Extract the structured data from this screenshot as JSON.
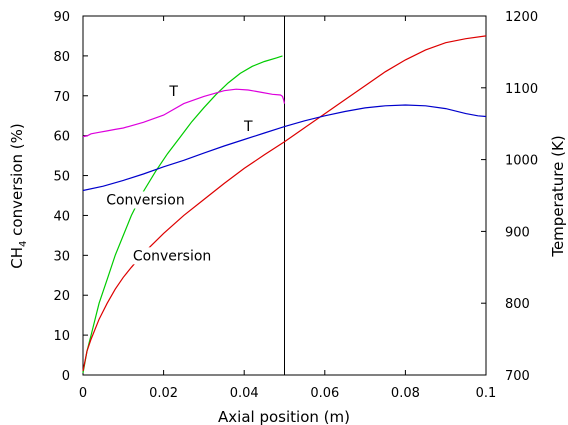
{
  "chart_data": {
    "type": "line",
    "xlabel": "Axial position (m)",
    "ylabel_left": {
      "base": "CH",
      "sub": "4",
      "rest": " conversion (%)"
    },
    "ylabel_right": "Temperature (K)",
    "xlim": [
      0,
      0.1
    ],
    "ylim_left": [
      0,
      90
    ],
    "ylim_right": [
      700,
      1200
    ],
    "xticks": [
      {
        "value": 0,
        "label": "0"
      },
      {
        "value": 0.02,
        "label": "0.02"
      },
      {
        "value": 0.04,
        "label": "0.04"
      },
      {
        "value": 0.06,
        "label": "0.06"
      },
      {
        "value": 0.08,
        "label": "0.08"
      },
      {
        "value": 0.1,
        "label": "0.1"
      }
    ],
    "yticks_left": [
      0,
      10,
      20,
      30,
      40,
      50,
      60,
      70,
      80,
      90
    ],
    "yticks_right": [
      700,
      800,
      900,
      1000,
      1100,
      1200
    ],
    "vline_x": 0.05,
    "series": [
      {
        "color": "#00cc00",
        "axis": "left",
        "x": [
          0,
          0.001,
          0.002,
          0.004,
          0.006,
          0.008,
          0.01,
          0.012,
          0.015,
          0.018,
          0.021,
          0.024,
          0.027,
          0.03,
          0.033,
          0.036,
          0.039,
          0.042,
          0.045,
          0.048,
          0.0495
        ],
        "y": [
          0.5,
          6,
          10,
          18,
          24,
          30,
          35,
          40,
          46,
          51,
          55.5,
          59.5,
          63.5,
          67,
          70.3,
          73.2,
          75.6,
          77.4,
          78.6,
          79.5,
          80
        ]
      },
      {
        "color": "#dd0000",
        "axis": "left",
        "x": [
          0,
          0.001,
          0.002,
          0.004,
          0.006,
          0.008,
          0.01,
          0.012,
          0.015,
          0.02,
          0.025,
          0.03,
          0.035,
          0.04,
          0.045,
          0.05,
          0.055,
          0.06,
          0.065,
          0.07,
          0.075,
          0.08,
          0.085,
          0.09,
          0.095,
          0.1
        ],
        "y": [
          1,
          6,
          9,
          14,
          18,
          21.5,
          24.5,
          27,
          30.5,
          35.5,
          40,
          44,
          48,
          51.8,
          55.2,
          58.5,
          62,
          65.5,
          69,
          72.5,
          76,
          79,
          81.5,
          83.3,
          84.3,
          85
        ]
      },
      {
        "color": "#dd00dd",
        "axis": "right",
        "x": [
          0,
          0.001,
          0.002,
          0.004,
          0.006,
          0.008,
          0.01,
          0.015,
          0.02,
          0.025,
          0.03,
          0.035,
          0.038,
          0.041,
          0.044,
          0.047,
          0.049,
          0.0495,
          0.0498,
          0.05
        ],
        "y": [
          1032,
          1033,
          1036,
          1038,
          1040,
          1042,
          1044,
          1052,
          1062,
          1078,
          1088,
          1096,
          1098,
          1097,
          1094,
          1091,
          1090,
          1088,
          1083,
          1078
        ]
      },
      {
        "color": "#0000cc",
        "axis": "right",
        "x": [
          0,
          0.005,
          0.01,
          0.015,
          0.02,
          0.025,
          0.03,
          0.035,
          0.04,
          0.045,
          0.05,
          0.055,
          0.06,
          0.065,
          0.07,
          0.075,
          0.08,
          0.085,
          0.09,
          0.095,
          0.098,
          0.1
        ],
        "y": [
          957,
          963,
          971,
          980,
          990,
          999,
          1009,
          1019,
          1028,
          1037,
          1046,
          1054,
          1061,
          1067,
          1072,
          1075,
          1076,
          1075,
          1071,
          1064,
          1061,
          1060
        ]
      }
    ],
    "annotations": [
      {
        "text": "T",
        "x": 0.0225,
        "y_right": 1090
      },
      {
        "text": "T",
        "x": 0.041,
        "y_right": 1041
      },
      {
        "text": "Conversion",
        "x": 0.0155,
        "y_left": 43
      },
      {
        "text": "Conversion",
        "x": 0.0221,
        "y_left": 29
      }
    ]
  }
}
